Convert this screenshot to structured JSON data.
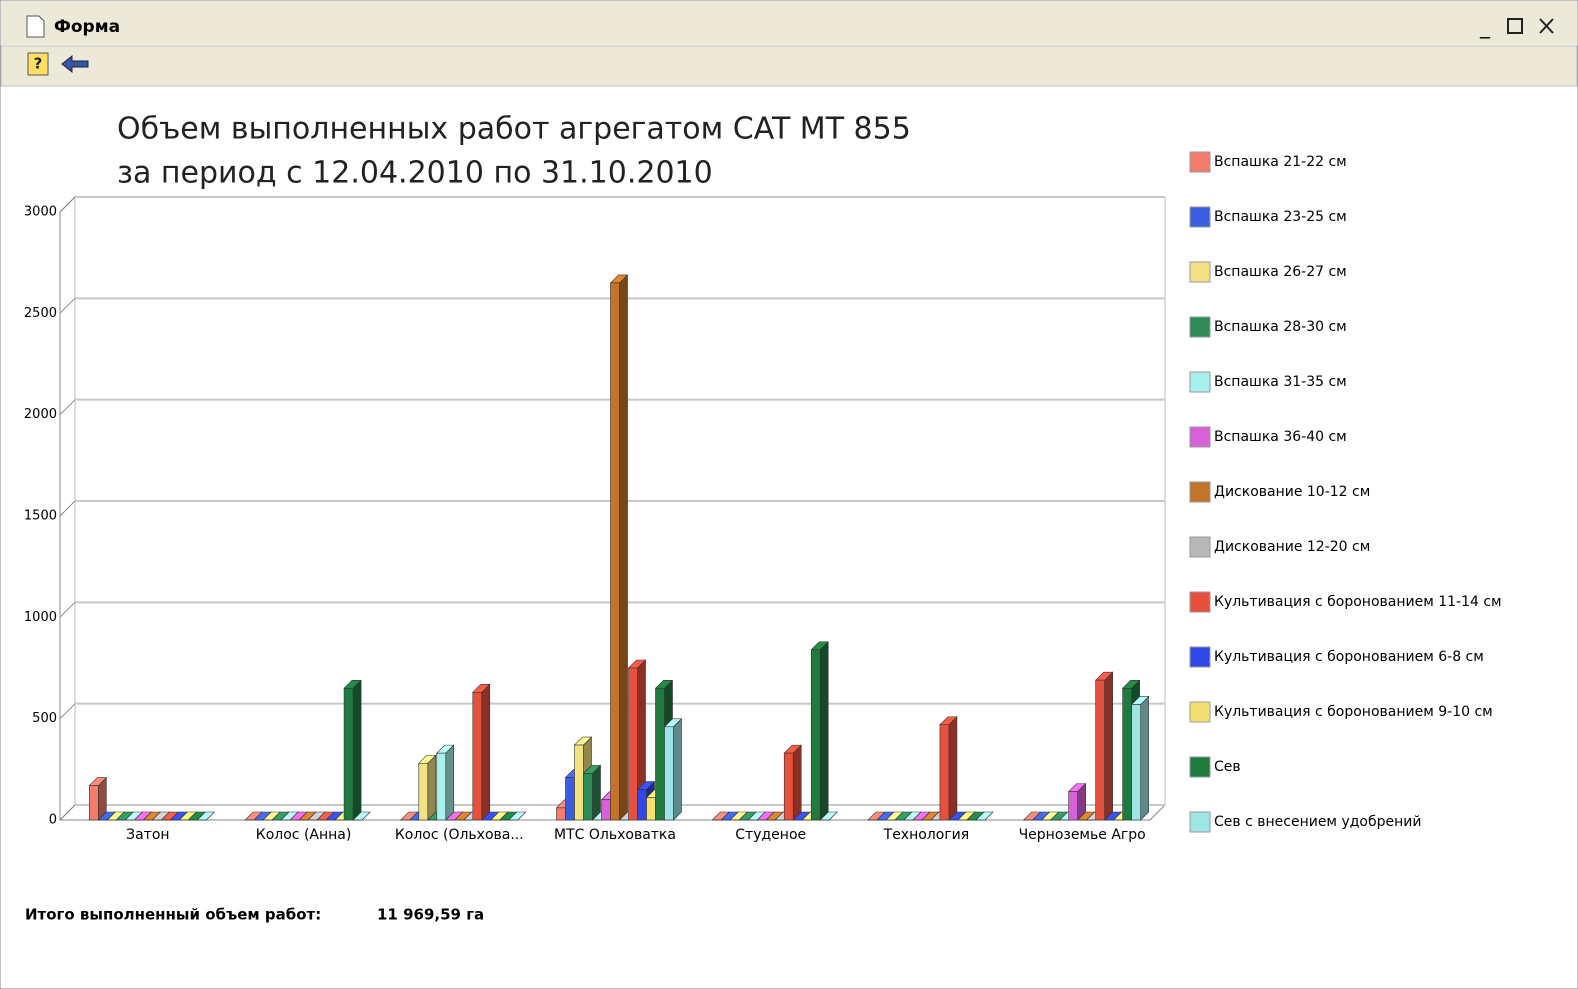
{
  "window": {
    "title": "Форма"
  },
  "chart_data": {
    "type": "bar",
    "title": "Объем выполненных работ агрегатом CAT MT 855",
    "subtitle": "за период с 12.04.2010 по 31.10.2010",
    "categories": [
      "Затон",
      "Колос (Анна)",
      "Колос (Ольхова...",
      "МТС Ольховатка",
      "Студеное",
      "Технология",
      "Черноземье Агро"
    ],
    "ylim": [
      0,
      3000
    ],
    "yticks": [
      0,
      500,
      1000,
      1500,
      2000,
      2500,
      3000
    ],
    "grid": true,
    "legend": "right",
    "series": [
      {
        "name": "Вспашка 21-22 см",
        "color": "#f47c6c",
        "values": [
          170,
          0,
          0,
          60,
          0,
          0,
          0
        ]
      },
      {
        "name": "Вспашка 23-25 см",
        "color": "#3a5ee0",
        "values": [
          0,
          0,
          0,
          210,
          0,
          0,
          0
        ]
      },
      {
        "name": "Вспашка 26-27 см",
        "color": "#f2e282",
        "values": [
          0,
          0,
          280,
          370,
          0,
          0,
          0
        ]
      },
      {
        "name": "Вспашка 28-30 см",
        "color": "#2e8b57",
        "values": [
          0,
          0,
          0,
          230,
          0,
          0,
          0
        ]
      },
      {
        "name": "Вспашка 31-35 см",
        "color": "#a6f0ee",
        "values": [
          0,
          0,
          330,
          0,
          0,
          0,
          0
        ]
      },
      {
        "name": "Вспашка 36-40 см",
        "color": "#d860d8",
        "values": [
          0,
          0,
          0,
          100,
          0,
          0,
          140
        ]
      },
      {
        "name": "Дискование 10-12 см",
        "color": "#c47428",
        "values": [
          0,
          0,
          0,
          2650,
          0,
          0,
          0
        ]
      },
      {
        "name": "Дискование 12-20 см",
        "color": "#b8b8b8",
        "values": [
          0,
          0,
          0,
          0,
          0,
          0,
          0
        ]
      },
      {
        "name": "Культивация с боронованием 11-14 см",
        "color": "#e8503e",
        "values": [
          0,
          0,
          630,
          750,
          330,
          470,
          690
        ]
      },
      {
        "name": "Культивация с боронованием 6-8 см",
        "color": "#3048e8",
        "values": [
          0,
          0,
          0,
          150,
          0,
          0,
          0
        ]
      },
      {
        "name": "Культивация с боронованием 9-10 см",
        "color": "#f2e070",
        "values": [
          0,
          0,
          0,
          110,
          0,
          0,
          0
        ]
      },
      {
        "name": "Сев",
        "color": "#1f7a3e",
        "values": [
          0,
          650,
          0,
          650,
          840,
          0,
          650
        ]
      },
      {
        "name": "Сев с внесением удобрений",
        "color": "#9ee6e6",
        "values": [
          0,
          0,
          0,
          460,
          0,
          0,
          570
        ]
      }
    ]
  },
  "footer": {
    "label": "Итого выполненный объем работ:",
    "value": "11 969,59 га"
  }
}
